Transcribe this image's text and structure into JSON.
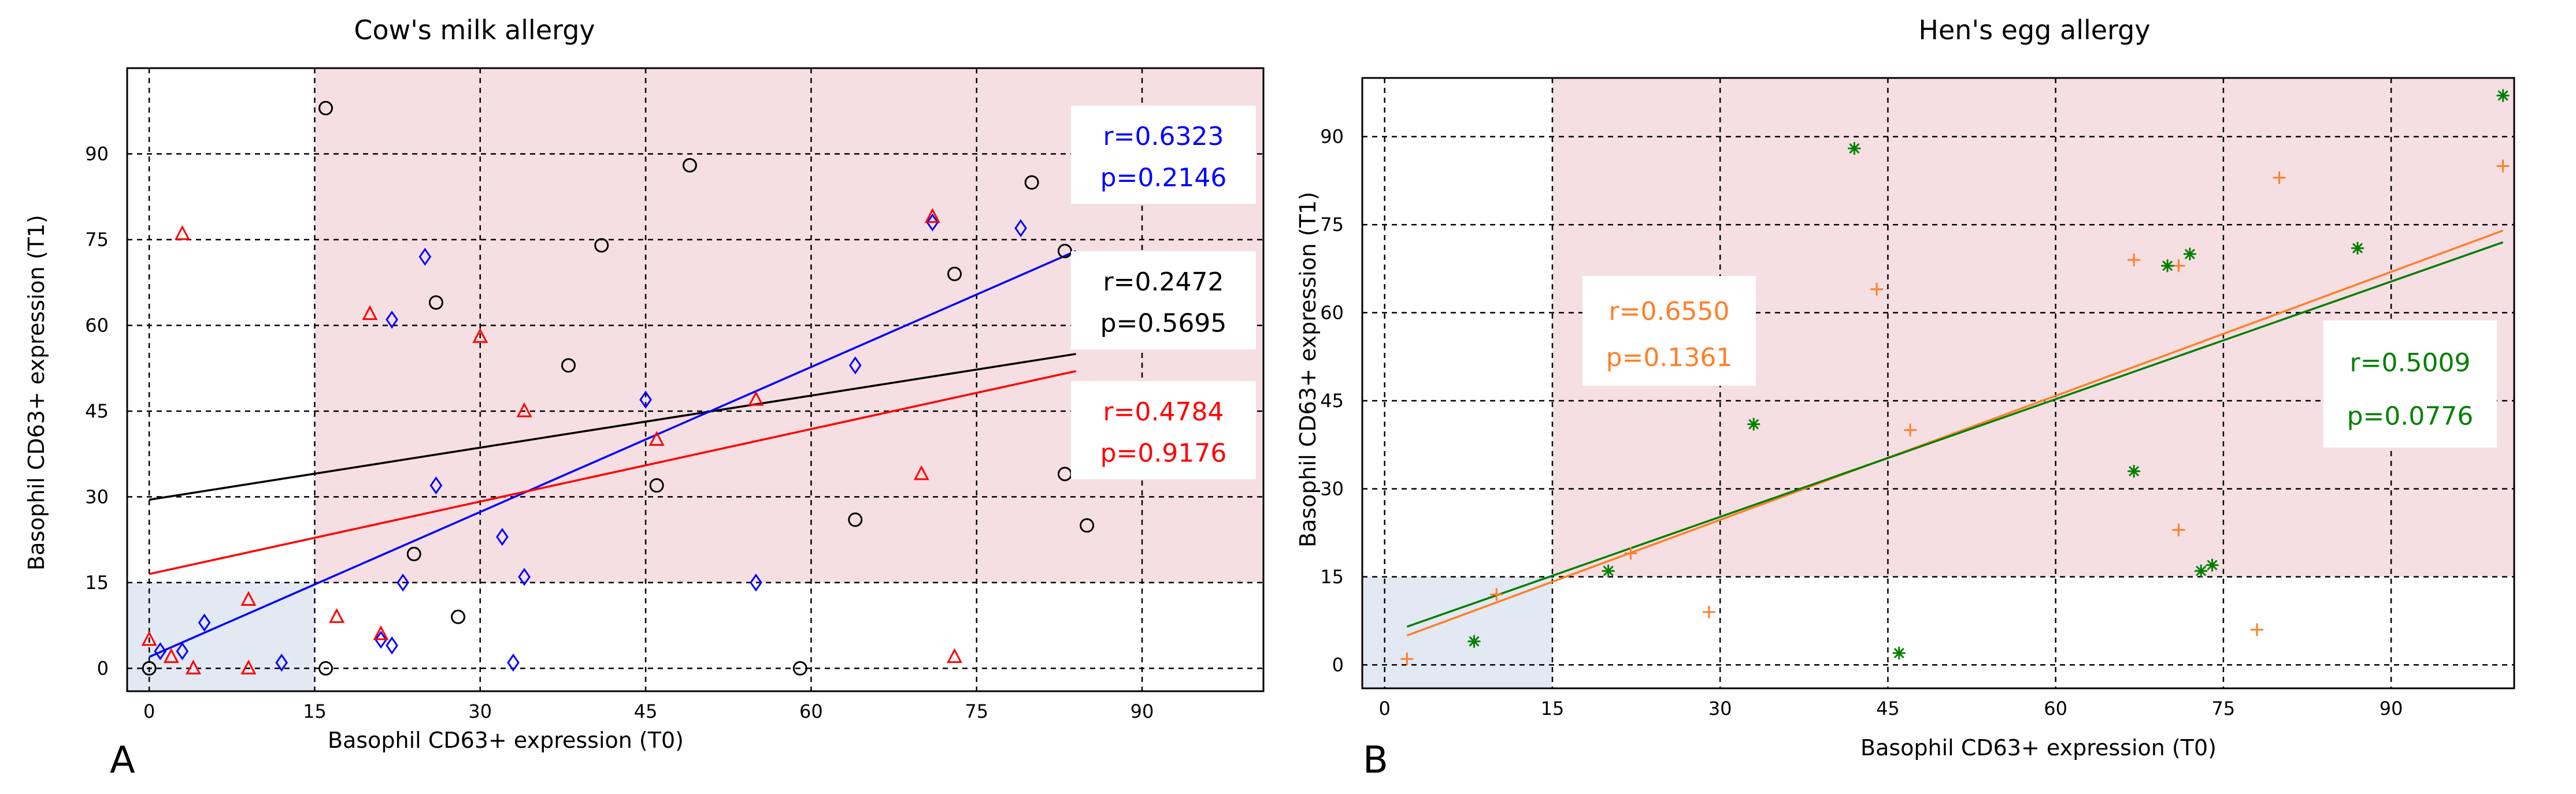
{
  "figure": {
    "panel_labels": [
      "A",
      "B"
    ]
  },
  "chart_data": [
    {
      "panel": "A",
      "type": "scatter",
      "title": "Cow's milk allergy",
      "xlabel": "Basophil CD63+ expression (T0)",
      "ylabel": "Basophil CD63+ expression (T1)",
      "xlim": [
        -2,
        101
      ],
      "ylim": [
        -4,
        105
      ],
      "xticks": [
        0,
        15,
        30,
        45,
        60,
        75,
        90
      ],
      "yticks": [
        0,
        15,
        30,
        45,
        60,
        75,
        90
      ],
      "grid": true,
      "shaded_regions": [
        {
          "name": "positive-region",
          "x": [
            15,
            101
          ],
          "y": [
            15,
            105
          ],
          "color": "#f6dfe3"
        },
        {
          "name": "positive-region",
          "x": [
            -2,
            15
          ],
          "y": [
            -4,
            15
          ],
          "color": "#e3e9f3"
        }
      ],
      "series": [
        {
          "name": "black",
          "marker": "circle",
          "color": "#000000",
          "points": [
            [
              0,
              0
            ],
            [
              16,
              98
            ],
            [
              16,
              0
            ],
            [
              26,
              64
            ],
            [
              24,
              20
            ],
            [
              28,
              9
            ],
            [
              38,
              53
            ],
            [
              41,
              74
            ],
            [
              46,
              32
            ],
            [
              49,
              88
            ],
            [
              59,
              0
            ],
            [
              64,
              26
            ],
            [
              73,
              69
            ],
            [
              80,
              85
            ],
            [
              83,
              73
            ],
            [
              83,
              34
            ],
            [
              85,
              25
            ]
          ],
          "fit": {
            "x": [
              0,
              84
            ],
            "y": [
              29.5,
              55
            ]
          },
          "annotation": {
            "r": "r=0.2472",
            "p": "p=0.5695"
          }
        },
        {
          "name": "blue",
          "marker": "diamond",
          "color": "#0000ff",
          "points": [
            [
              1,
              3
            ],
            [
              3,
              3
            ],
            [
              5,
              8
            ],
            [
              12,
              1
            ],
            [
              21,
              5
            ],
            [
              22,
              61
            ],
            [
              22,
              4
            ],
            [
              23,
              15
            ],
            [
              25,
              72
            ],
            [
              26,
              32
            ],
            [
              32,
              23
            ],
            [
              33,
              1
            ],
            [
              34,
              16
            ],
            [
              45,
              47
            ],
            [
              55,
              15
            ],
            [
              64,
              53
            ],
            [
              71,
              78
            ],
            [
              79,
              77
            ]
          ],
          "fit": {
            "x": [
              0,
              84
            ],
            "y": [
              2,
              73
            ]
          },
          "annotation": {
            "r": "r=0.6323",
            "p": "p=0.2146"
          }
        },
        {
          "name": "red",
          "marker": "triangle",
          "color": "#ff0000",
          "points": [
            [
              0,
              5
            ],
            [
              2,
              2
            ],
            [
              3,
              76
            ],
            [
              4,
              0
            ],
            [
              9,
              12
            ],
            [
              9,
              0
            ],
            [
              17,
              9
            ],
            [
              20,
              62
            ],
            [
              21,
              6
            ],
            [
              30,
              58
            ],
            [
              34,
              45
            ],
            [
              46,
              40
            ],
            [
              55,
              47
            ],
            [
              70,
              34
            ],
            [
              71,
              79
            ],
            [
              73,
              2
            ]
          ],
          "fit": {
            "x": [
              0,
              84
            ],
            "y": [
              16.5,
              52
            ]
          },
          "annotation": {
            "r": "r=0.4784",
            "p": "p=0.9176"
          }
        }
      ]
    },
    {
      "panel": "B",
      "type": "scatter",
      "title": "Hen's egg allergy",
      "xlabel": "Basophil CD63+ expression (T0)",
      "ylabel": "Basophil CD63+ expression (T1)",
      "xlim": [
        -2,
        101
      ],
      "ylim": [
        -4,
        100
      ],
      "xticks": [
        0,
        15,
        30,
        45,
        60,
        75,
        90
      ],
      "yticks": [
        0,
        15,
        30,
        45,
        60,
        75,
        90
      ],
      "grid": true,
      "shaded_regions": [
        {
          "name": "positive-region",
          "x": [
            15,
            101
          ],
          "y": [
            15,
            100
          ],
          "color": "#f6dfe3"
        },
        {
          "name": "positive-region",
          "x": [
            -2,
            15
          ],
          "y": [
            -4,
            15
          ],
          "color": "#e3e9f3"
        }
      ],
      "series": [
        {
          "name": "orange",
          "marker": "plus",
          "color": "#ff7f27",
          "points": [
            [
              2,
              1
            ],
            [
              10,
              12
            ],
            [
              22,
              19
            ],
            [
              29,
              9
            ],
            [
              44,
              64
            ],
            [
              47,
              40
            ],
            [
              67,
              69
            ],
            [
              71,
              68
            ],
            [
              71,
              23
            ],
            [
              78,
              6
            ],
            [
              80,
              83
            ],
            [
              100,
              85
            ]
          ],
          "fit": {
            "x": [
              2,
              100
            ],
            "y": [
              5,
              74
            ]
          },
          "annotation": {
            "r": "r=0.6550",
            "p": "p=0.1361"
          }
        },
        {
          "name": "green",
          "marker": "asterisk",
          "color": "#008000",
          "points": [
            [
              8,
              4
            ],
            [
              20,
              16
            ],
            [
              33,
              41
            ],
            [
              42,
              88
            ],
            [
              46,
              2
            ],
            [
              67,
              33
            ],
            [
              70,
              68
            ],
            [
              72,
              70
            ],
            [
              73,
              16
            ],
            [
              74,
              17
            ],
            [
              87,
              71
            ],
            [
              100,
              97
            ]
          ],
          "fit": {
            "x": [
              2,
              100
            ],
            "y": [
              6.5,
              72
            ]
          },
          "annotation": {
            "r": "r=0.5009",
            "p": "p=0.0776"
          }
        }
      ]
    }
  ]
}
